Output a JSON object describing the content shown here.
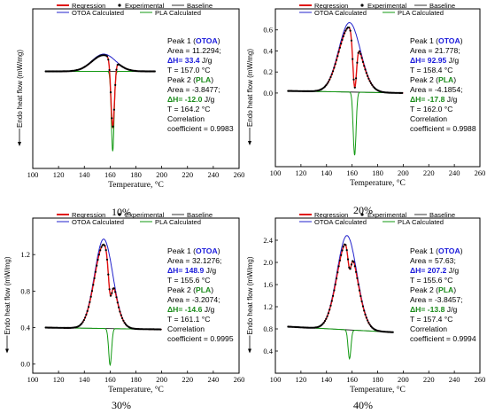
{
  "legend": {
    "regression": "Regression",
    "experimental": "Experimental",
    "baseline": "Baseline",
    "otoa_calc": "OTOA Calculated",
    "pla_calc": "PLA Calculated"
  },
  "colors": {
    "regression": "#e01010",
    "experimental": "#000000",
    "baseline": "#000000",
    "otoa": "#2222cc",
    "pla": "#119911",
    "annotation_blue": "#1a1adb",
    "annotation_green": "#1a8a1a"
  },
  "chart_data": [
    {
      "type": "line",
      "caption": "10%",
      "xlabel": "Temperature, °C",
      "ylabel": "Endo heat flow (mW/mg)",
      "xlim": [
        100,
        260
      ],
      "ylim": [
        -1.0,
        0.2
      ],
      "xticks": [
        "100",
        "120",
        "140",
        "160",
        "180",
        "200",
        "220",
        "240",
        "260"
      ],
      "yticks": [],
      "peak": {
        "center": 155,
        "height": 0.13,
        "width": 13
      },
      "dip": {
        "center": 162,
        "depth": 0.6,
        "width": 1.5
      },
      "baseline": [
        {
          "x": 110,
          "y": -0.27
        },
        {
          "x": 195,
          "y": -0.27
        }
      ],
      "annotation": {
        "p1_title": "Peak 1 (",
        "p1_name": "OTOA",
        "p1_close": ")",
        "p1_area": "Area =  11.2294;",
        "p1_dh_label": "ΔH= 33.4",
        "p1_dh_unit": " J/g",
        "p1_t": "T = 157.0 °C",
        "p2_title": "Peak 2 (",
        "p2_name": "PLA",
        "p2_close": ")",
        "p2_area": "Area = -3.8477;",
        "p2_dh_label": "ΔH= -12.0",
        "p2_dh_unit": " J/g",
        "p2_t": "T = 164.2 °C",
        "corr_1": "Correlation",
        "corr_2": "coefficient = 0.9983"
      }
    },
    {
      "type": "line",
      "caption": "20%",
      "xlabel": "Temperature, °C",
      "ylabel": "Endo heat flow (mW/mg)",
      "xlim": [
        100,
        260
      ],
      "ylim": [
        -0.7,
        0.8
      ],
      "xticks": [
        "100",
        "120",
        "140",
        "160",
        "180",
        "200",
        "220",
        "240",
        "260"
      ],
      "yticks": [
        "0.0",
        "0.2",
        "0.4",
        "0.6"
      ],
      "peak": {
        "center": 158,
        "height": 0.66,
        "width": 12
      },
      "dip": {
        "center": 162,
        "depth": 0.6,
        "width": 1.6
      },
      "baseline": [
        {
          "x": 110,
          "y": 0.02
        },
        {
          "x": 200,
          "y": 0.0
        }
      ],
      "annotation": {
        "p1_title": "Peak 1 (",
        "p1_name": "OTOA",
        "p1_close": ")",
        "p1_area": "Area =  21.778;",
        "p1_dh_label": "ΔH= 92.95",
        "p1_dh_unit": " J/g",
        "p1_t": "T = 158.4 °C",
        "p2_title": "Peak 2 (",
        "p2_name": "PLA",
        "p2_close": ")",
        "p2_area": "Area = -4.1854;",
        "p2_dh_label": "ΔH= -17.8",
        "p2_dh_unit": " J/g",
        "p2_t": "T = 162.0 °C",
        "corr_1": "Correlation",
        "corr_2": "coefficient = 0.9988"
      }
    },
    {
      "type": "line",
      "caption": "30%",
      "xlabel": "Temperature, °C",
      "ylabel": "Endo heat flow (mW/mg)",
      "xlim": [
        100,
        260
      ],
      "ylim": [
        -0.1,
        1.6
      ],
      "xticks": [
        "100",
        "120",
        "140",
        "160",
        "180",
        "200",
        "220",
        "240",
        "260"
      ],
      "yticks": [
        "0.0",
        "0.4",
        "0.8",
        "1.2"
      ],
      "peak": {
        "center": 155,
        "height": 0.98,
        "width": 10
      },
      "dip": {
        "center": 160,
        "depth": 0.4,
        "width": 1.6
      },
      "baseline": [
        {
          "x": 110,
          "y": 0.4
        },
        {
          "x": 200,
          "y": 0.38
        }
      ],
      "annotation": {
        "p1_title": "Peak 1 (",
        "p1_name": "OTOA",
        "p1_close": ")",
        "p1_area": "Area =  32.1276;",
        "p1_dh_label": "ΔH= 148.9",
        "p1_dh_unit": " J/g",
        "p1_t": "T = 155.6 °C",
        "p2_title": "Peak 2 (",
        "p2_name": "PLA",
        "p2_close": ")",
        "p2_area": "Area =  -3.2074;",
        "p2_dh_label": "ΔH= -14.6",
        "p2_dh_unit": " J/g",
        "p2_t": "T = 161.1 °C",
        "corr_1": "Correlation",
        "corr_2": "coefficient = 0.9995"
      }
    },
    {
      "type": "line",
      "caption": "40%",
      "xlabel": "Temperature, °C",
      "ylabel": "Endo heat flow (mW/mg)",
      "xlim": [
        100,
        260
      ],
      "ylim": [
        0.0,
        2.8
      ],
      "xticks": [
        "100",
        "120",
        "140",
        "160",
        "180",
        "200",
        "220",
        "240",
        "260"
      ],
      "yticks": [
        "0.4",
        "0.8",
        "1.2",
        "1.6",
        "2.0",
        "2.4"
      ],
      "peak": {
        "center": 156,
        "height": 1.7,
        "width": 11
      },
      "dip": {
        "center": 158,
        "depth": 0.52,
        "width": 1.6
      },
      "baseline": [
        {
          "x": 110,
          "y": 0.84
        },
        {
          "x": 192,
          "y": 0.74
        }
      ],
      "annotation": {
        "p1_title": "Peak 1 (",
        "p1_name": "OTOA",
        "p1_close": ")",
        "p1_area": "Area =  57.63;",
        "p1_dh_label": "ΔH= 207.2",
        "p1_dh_unit": " J/g",
        "p1_t": "T = 155.6 °C",
        "p2_title": "Peak 2 (",
        "p2_name": "PLA",
        "p2_close": ")",
        "p2_area": "Area = -3.8457;",
        "p2_dh_label": "ΔH= -13.8",
        "p2_dh_unit": " J/g",
        "p2_t": "T = 157.4 °C",
        "corr_1": "Correlation",
        "corr_2": "coefficient = 0.9994"
      }
    }
  ]
}
